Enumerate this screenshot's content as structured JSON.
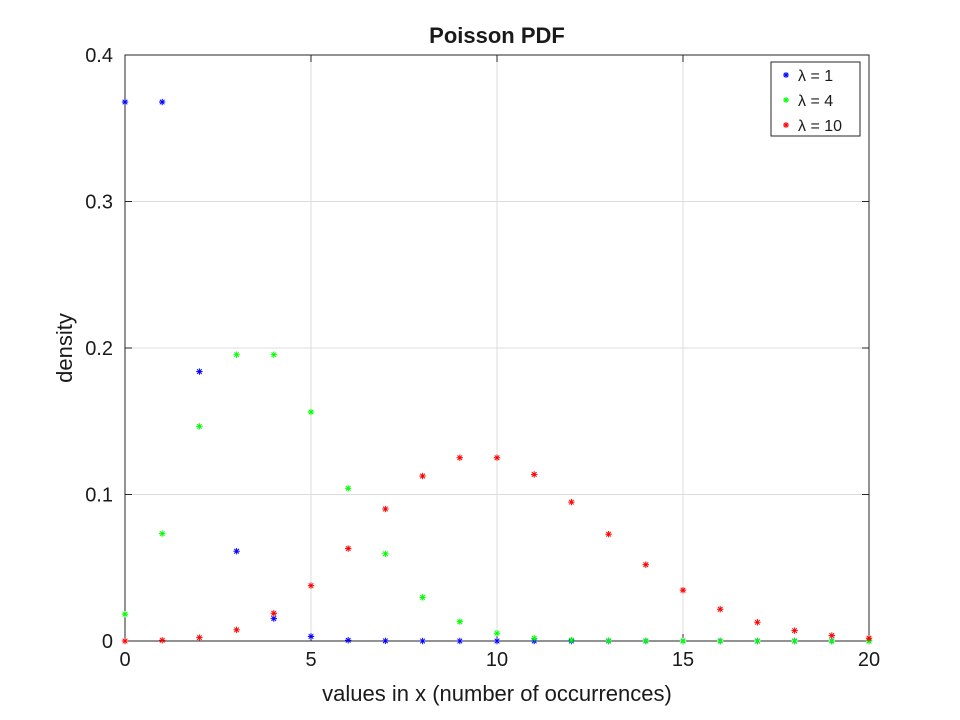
{
  "chart_data": {
    "type": "scatter",
    "title": "Poisson PDF",
    "xlabel": "values in x (number of occurrences)",
    "ylabel": "density",
    "xlim": [
      0,
      20
    ],
    "ylim": [
      0,
      0.4
    ],
    "xticks": [
      0,
      5,
      10,
      15,
      20
    ],
    "yticks": [
      0,
      0.1,
      0.2,
      0.3,
      0.4
    ],
    "xtick_labels": [
      "0",
      "5",
      "10",
      "15",
      "20"
    ],
    "ytick_labels": [
      "0",
      "0.1",
      "0.2",
      "0.3",
      "0.4"
    ],
    "grid": true,
    "legend_position": "top-right",
    "x": [
      0,
      1,
      2,
      3,
      4,
      5,
      6,
      7,
      8,
      9,
      10,
      11,
      12,
      13,
      14,
      15,
      16,
      17,
      18,
      19,
      20
    ],
    "series": [
      {
        "name": "λ = 1",
        "color": "#0000ff",
        "values": [
          0.3679,
          0.3679,
          0.1839,
          0.0613,
          0.0153,
          0.0031,
          0.0005,
          0.0001,
          0.0,
          0.0,
          0.0,
          0.0,
          0.0,
          0.0,
          0.0,
          0.0,
          0.0,
          0.0,
          0.0,
          0.0,
          0.0
        ]
      },
      {
        "name": "λ = 4",
        "color": "#00ff00",
        "values": [
          0.0183,
          0.0733,
          0.1465,
          0.1954,
          0.1954,
          0.1563,
          0.1042,
          0.0595,
          0.0298,
          0.0132,
          0.0053,
          0.0019,
          0.0006,
          0.0002,
          0.0001,
          0.0,
          0.0,
          0.0,
          0.0,
          0.0,
          0.0
        ]
      },
      {
        "name": "λ = 10",
        "color": "#ff0000",
        "values": [
          0.0,
          0.0005,
          0.0023,
          0.0076,
          0.0189,
          0.0378,
          0.0631,
          0.0901,
          0.1126,
          0.1251,
          0.1251,
          0.1137,
          0.0948,
          0.0729,
          0.0521,
          0.0347,
          0.0217,
          0.0128,
          0.0071,
          0.0037,
          0.0019
        ]
      }
    ]
  }
}
